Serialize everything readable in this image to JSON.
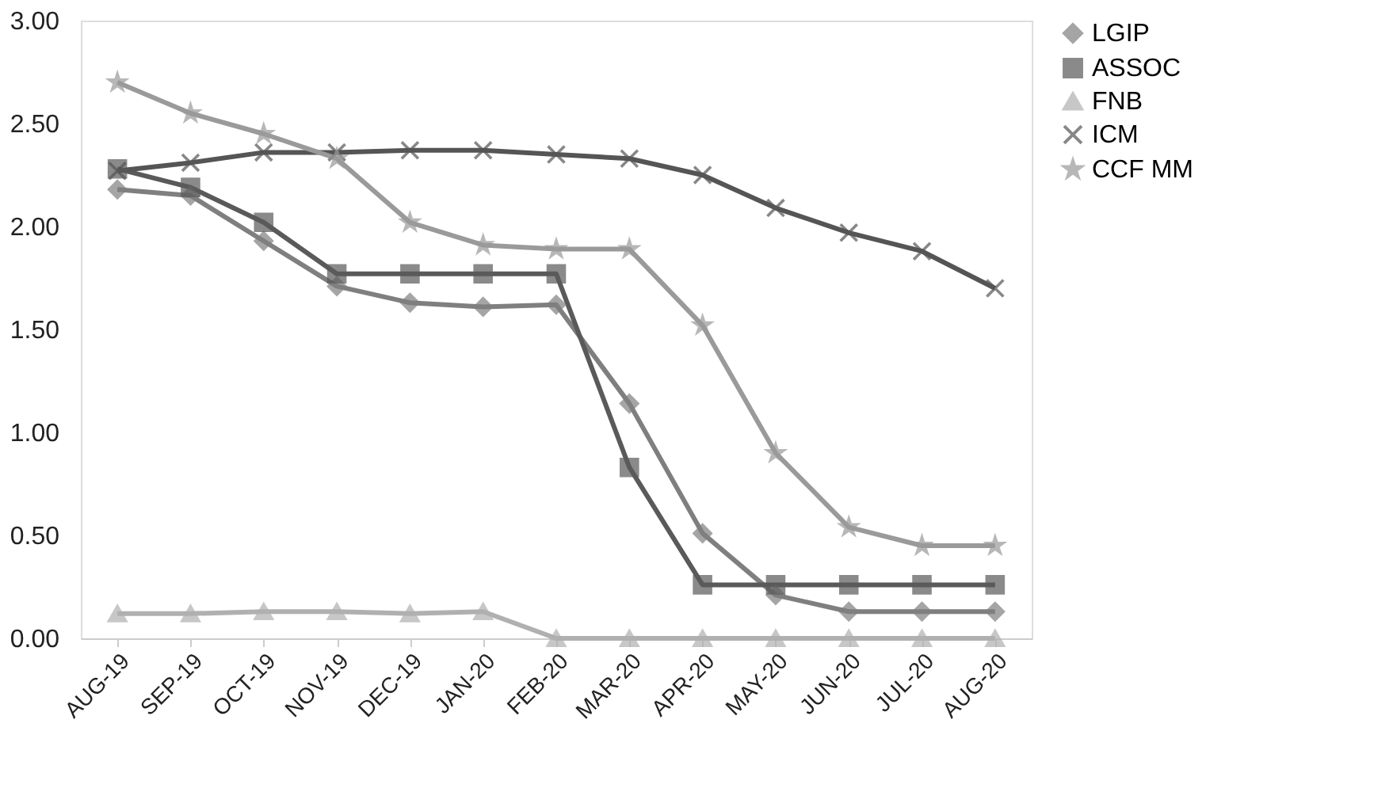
{
  "chart_data": {
    "type": "line",
    "categories": [
      "AUG-19",
      "SEP-19",
      "OCT-19",
      "NOV-19",
      "DEC-19",
      "JAN-20",
      "FEB-20",
      "MAR-20",
      "APR-20",
      "MAY-20",
      "JUN-20",
      "JUL-20",
      "AUG-20"
    ],
    "ylim": [
      0,
      3
    ],
    "yticks": [
      {
        "value": 0,
        "label": "0.00"
      },
      {
        "value": 0.5,
        "label": "0.50"
      },
      {
        "value": 1,
        "label": "1.00"
      },
      {
        "value": 1.5,
        "label": "1.50"
      },
      {
        "value": 2,
        "label": "2.00"
      },
      {
        "value": 2.5,
        "label": "2.50"
      },
      {
        "value": 3,
        "label": "3.00"
      }
    ],
    "grid": false,
    "legend": "right",
    "series": [
      {
        "name": "LGIP",
        "color": "#7f7f7f",
        "marker": "diamond",
        "values": [
          2.18,
          2.15,
          1.93,
          1.71,
          1.63,
          1.61,
          1.62,
          1.14,
          0.51,
          0.21,
          0.13,
          0.13,
          0.13
        ]
      },
      {
        "name": "ASSOC",
        "color": "#5a5a5a",
        "marker": "square",
        "values": [
          2.28,
          2.19,
          2.02,
          1.77,
          1.77,
          1.77,
          1.77,
          0.83,
          0.26,
          0.26,
          0.26,
          0.26,
          0.26
        ]
      },
      {
        "name": "FNB",
        "color": "#b0b0b0",
        "marker": "triangle",
        "values": [
          0.12,
          0.12,
          0.13,
          0.13,
          0.12,
          0.13,
          0,
          0,
          0,
          0,
          0,
          0,
          0
        ]
      },
      {
        "name": "ICM",
        "color": "#555555",
        "marker": "cross",
        "values": [
          2.27,
          2.31,
          2.36,
          2.36,
          2.37,
          2.37,
          2.35,
          2.33,
          2.25,
          2.09,
          1.97,
          1.88,
          1.7
        ]
      },
      {
        "name": "CCF MM",
        "color": "#9a9a9a",
        "marker": "star",
        "values": [
          2.7,
          2.55,
          2.45,
          2.33,
          2.02,
          1.91,
          1.89,
          1.89,
          1.52,
          0.9,
          0.54,
          0.45,
          0.45
        ]
      }
    ]
  }
}
